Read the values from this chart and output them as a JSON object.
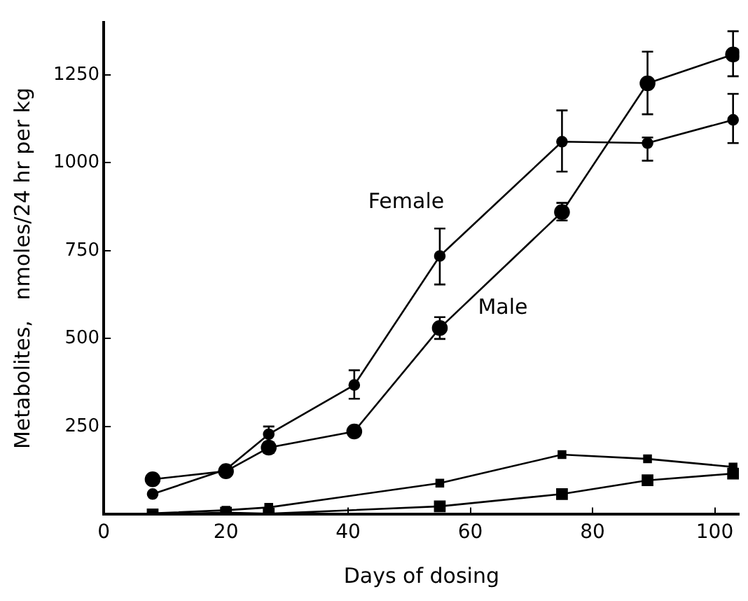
{
  "chart_data": {
    "type": "line",
    "xlabel": "Days of dosing",
    "ylabel": "Metabolites,   nmoles/24 hr per kg",
    "xlim": [
      0,
      104
    ],
    "xticks": [
      0,
      20,
      40,
      60,
      80,
      100
    ],
    "ylim": [
      0,
      1400
    ],
    "yticks": [
      250,
      500,
      750,
      1000,
      1250
    ],
    "grid": false,
    "legend": false,
    "series": [
      {
        "name": "Female",
        "color": "#000000",
        "marker": "circle",
        "x": [
          8,
          20,
          27,
          41,
          55,
          75,
          89,
          103
        ],
        "values": [
          58,
          128,
          228,
          368,
          735,
          1060,
          1056,
          1122
        ],
        "errors": [
          null,
          null,
          [
            200,
            250
          ],
          [
            329,
            410
          ],
          [
            654,
            813
          ],
          [
            975,
            1149
          ],
          [
            1006,
            1072
          ],
          [
            1056,
            1196
          ]
        ]
      },
      {
        "name": "Male",
        "color": "#000000",
        "marker": "circle",
        "x": [
          8,
          20,
          27,
          41,
          55,
          75,
          89,
          103
        ],
        "values": [
          100,
          123,
          190,
          236,
          530,
          860,
          1226,
          1308
        ],
        "errors": [
          null,
          null,
          [
            175,
            205
          ],
          null,
          [
            499,
            561
          ],
          [
            836,
            886
          ],
          [
            1138,
            1316
          ],
          [
            1246,
            1374
          ]
        ]
      },
      {
        "color": "#000000",
        "marker": "square",
        "x": [
          8,
          20,
          27,
          55,
          75,
          89,
          103
        ],
        "values": [
          3,
          12,
          20,
          89,
          170,
          158,
          135
        ]
      },
      {
        "color": "#000000",
        "marker": "square",
        "x": [
          8,
          20,
          27,
          55,
          75,
          89,
          103
        ],
        "values": [
          0,
          5,
          2,
          23,
          58,
          97,
          116
        ]
      }
    ]
  }
}
